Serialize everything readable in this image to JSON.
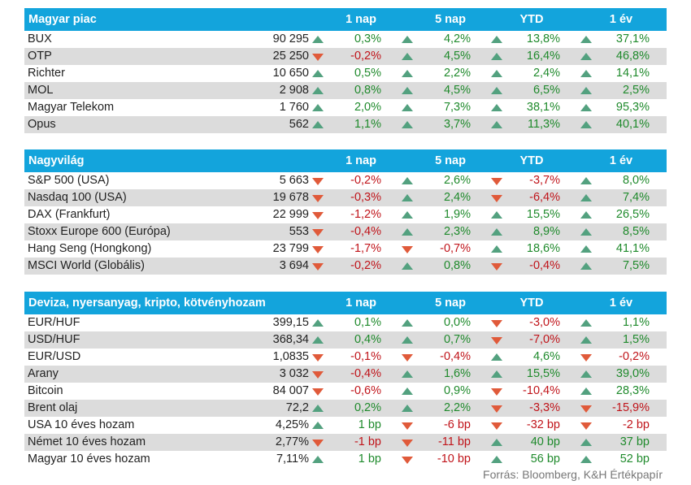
{
  "columns": [
    "1 nap",
    "5 nap",
    "YTD",
    "1 év"
  ],
  "sections": [
    {
      "title": "Magyar piac",
      "rows": [
        {
          "name": "BUX",
          "value": "90 295",
          "changes": [
            {
              "dir": "up",
              "text": "0,3%"
            },
            {
              "dir": "up",
              "text": "4,2%"
            },
            {
              "dir": "up",
              "text": "13,8%"
            },
            {
              "dir": "up",
              "text": "37,1%"
            }
          ]
        },
        {
          "name": "OTP",
          "value": "25 250",
          "changes": [
            {
              "dir": "down",
              "text": "-0,2%"
            },
            {
              "dir": "up",
              "text": "4,5%"
            },
            {
              "dir": "up",
              "text": "16,4%"
            },
            {
              "dir": "up",
              "text": "46,8%"
            }
          ]
        },
        {
          "name": "Richter",
          "value": "10 650",
          "changes": [
            {
              "dir": "up",
              "text": "0,5%"
            },
            {
              "dir": "up",
              "text": "2,2%"
            },
            {
              "dir": "up",
              "text": "2,4%"
            },
            {
              "dir": "up",
              "text": "14,1%"
            }
          ]
        },
        {
          "name": "MOL",
          "value": "2 908",
          "changes": [
            {
              "dir": "up",
              "text": "0,8%"
            },
            {
              "dir": "up",
              "text": "4,5%"
            },
            {
              "dir": "up",
              "text": "6,5%"
            },
            {
              "dir": "up",
              "text": "2,5%"
            }
          ]
        },
        {
          "name": "Magyar Telekom",
          "value": "1 760",
          "changes": [
            {
              "dir": "up",
              "text": "2,0%"
            },
            {
              "dir": "up",
              "text": "7,3%"
            },
            {
              "dir": "up",
              "text": "38,1%"
            },
            {
              "dir": "up",
              "text": "95,3%"
            }
          ]
        },
        {
          "name": "Opus",
          "value": "562",
          "changes": [
            {
              "dir": "up",
              "text": "1,1%"
            },
            {
              "dir": "up",
              "text": "3,7%"
            },
            {
              "dir": "up",
              "text": "11,3%"
            },
            {
              "dir": "up",
              "text": "40,1%"
            }
          ]
        }
      ]
    },
    {
      "title": "Nagyvilág",
      "rows": [
        {
          "name": "S&P 500 (USA)",
          "value": "5 663",
          "changes": [
            {
              "dir": "down",
              "text": "-0,2%"
            },
            {
              "dir": "up",
              "text": "2,6%"
            },
            {
              "dir": "down",
              "text": "-3,7%"
            },
            {
              "dir": "up",
              "text": "8,0%"
            }
          ]
        },
        {
          "name": "Nasdaq 100 (USA)",
          "value": "19 678",
          "changes": [
            {
              "dir": "down",
              "text": "-0,3%"
            },
            {
              "dir": "up",
              "text": "2,4%"
            },
            {
              "dir": "down",
              "text": "-6,4%"
            },
            {
              "dir": "up",
              "text": "7,4%"
            }
          ]
        },
        {
          "name": "DAX (Frankfurt)",
          "value": "22 999",
          "changes": [
            {
              "dir": "down",
              "text": "-1,2%"
            },
            {
              "dir": "up",
              "text": "1,9%"
            },
            {
              "dir": "up",
              "text": "15,5%"
            },
            {
              "dir": "up",
              "text": "26,5%"
            }
          ]
        },
        {
          "name": "Stoxx Europe 600 (Európa)",
          "value": "553",
          "changes": [
            {
              "dir": "down",
              "text": "-0,4%"
            },
            {
              "dir": "up",
              "text": "2,3%"
            },
            {
              "dir": "up",
              "text": "8,9%"
            },
            {
              "dir": "up",
              "text": "8,5%"
            }
          ]
        },
        {
          "name": "Hang Seng (Hongkong)",
          "value": "23 799",
          "changes": [
            {
              "dir": "down",
              "text": "-1,7%"
            },
            {
              "dir": "down",
              "text": "-0,7%"
            },
            {
              "dir": "up",
              "text": "18,6%"
            },
            {
              "dir": "up",
              "text": "41,1%"
            }
          ]
        },
        {
          "name": "MSCI World (Globális)",
          "value": "3 694",
          "changes": [
            {
              "dir": "down",
              "text": "-0,2%"
            },
            {
              "dir": "up",
              "text": "0,8%"
            },
            {
              "dir": "down",
              "text": "-0,4%"
            },
            {
              "dir": "up",
              "text": "7,5%"
            }
          ]
        }
      ]
    },
    {
      "title": "Deviza, nyersanyag, kripto, kötvényhozam",
      "rows": [
        {
          "name": "EUR/HUF",
          "value": "399,15",
          "changes": [
            {
              "dir": "up",
              "text": "0,1%"
            },
            {
              "dir": "up",
              "text": "0,0%"
            },
            {
              "dir": "down",
              "text": "-3,0%"
            },
            {
              "dir": "up",
              "text": "1,1%"
            }
          ]
        },
        {
          "name": "USD/HUF",
          "value": "368,34",
          "changes": [
            {
              "dir": "up",
              "text": "0,4%"
            },
            {
              "dir": "up",
              "text": "0,7%"
            },
            {
              "dir": "down",
              "text": "-7,0%"
            },
            {
              "dir": "up",
              "text": "1,5%"
            }
          ]
        },
        {
          "name": "EUR/USD",
          "value": "1,0835",
          "changes": [
            {
              "dir": "down",
              "text": "-0,1%"
            },
            {
              "dir": "down",
              "text": "-0,4%"
            },
            {
              "dir": "up",
              "text": "4,6%"
            },
            {
              "dir": "down",
              "text": "-0,2%"
            }
          ]
        },
        {
          "name": "Arany",
          "value": "3 032",
          "changes": [
            {
              "dir": "down",
              "text": "-0,4%"
            },
            {
              "dir": "up",
              "text": "1,6%"
            },
            {
              "dir": "up",
              "text": "15,5%"
            },
            {
              "dir": "up",
              "text": "39,0%"
            }
          ]
        },
        {
          "name": "Bitcoin",
          "value": "84 007",
          "changes": [
            {
              "dir": "down",
              "text": "-0,6%"
            },
            {
              "dir": "up",
              "text": "0,9%"
            },
            {
              "dir": "down",
              "text": "-10,4%"
            },
            {
              "dir": "up",
              "text": "28,3%"
            }
          ]
        },
        {
          "name": "Brent olaj",
          "value": "72,2",
          "changes": [
            {
              "dir": "up",
              "text": "0,2%"
            },
            {
              "dir": "up",
              "text": "2,2%"
            },
            {
              "dir": "down",
              "text": "-3,3%"
            },
            {
              "dir": "down",
              "text": "-15,9%"
            }
          ]
        },
        {
          "name": "USA 10 éves hozam",
          "value": "4,25%",
          "changes": [
            {
              "dir": "up",
              "text": "1 bp"
            },
            {
              "dir": "down",
              "text": "-6 bp"
            },
            {
              "dir": "down",
              "text": "-32 bp"
            },
            {
              "dir": "down",
              "text": "-2 bp"
            }
          ]
        },
        {
          "name": "Német 10 éves hozam",
          "value": "2,77%",
          "changes": [
            {
              "dir": "down",
              "text": "-1 bp"
            },
            {
              "dir": "down",
              "text": "-11 bp"
            },
            {
              "dir": "up",
              "text": "40 bp"
            },
            {
              "dir": "up",
              "text": "37 bp"
            }
          ]
        },
        {
          "name": "Magyar 10 éves hozam",
          "value": "7,11%",
          "changes": [
            {
              "dir": "up",
              "text": "1 bp"
            },
            {
              "dir": "down",
              "text": "-10 bp"
            },
            {
              "dir": "up",
              "text": "56 bp"
            },
            {
              "dir": "up",
              "text": "52 bp"
            }
          ]
        }
      ]
    }
  ],
  "source": "Forrás: Bloomberg, K&H Értékpapír",
  "colors": {
    "header_bg": "#13a4dc",
    "row_alt": "#dcdcdc",
    "up_arrow": "#53a17f",
    "down_arrow": "#e05a3a",
    "positive_text": "#1f8a2c",
    "negative_text": "#c0141a"
  },
  "icons": {
    "up": "triangle-up-icon",
    "down": "triangle-down-icon"
  }
}
